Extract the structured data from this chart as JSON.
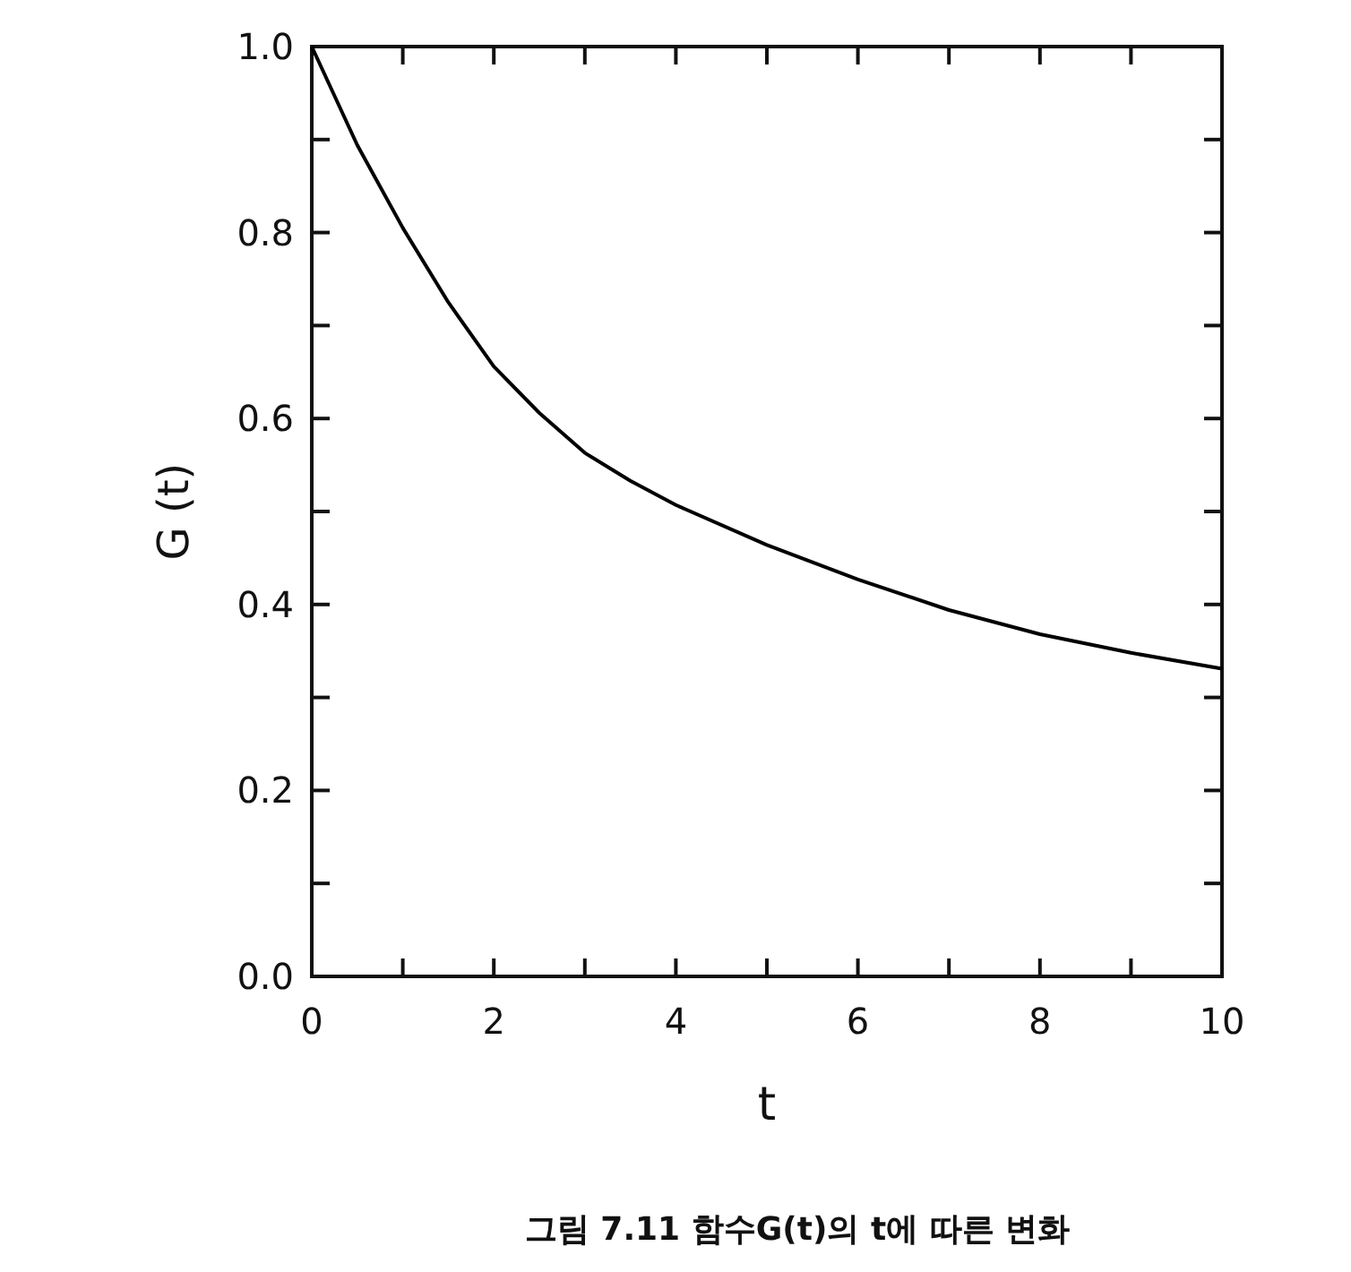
{
  "chart_data": {
    "type": "line",
    "xlabel": "t",
    "ylabel": "G (t)",
    "annotations": [
      "그림 7.11  함수G(t)의 t에 따른 변화"
    ],
    "x": [
      0,
      0.25,
      0.5,
      1,
      1.5,
      2,
      2.5,
      3,
      3.5,
      4,
      5,
      6,
      7,
      8,
      9,
      10
    ],
    "series": [
      {
        "color": "#000000",
        "values": [
          1.0,
          0.947,
          0.894,
          0.805,
          0.725,
          0.656,
          0.606,
          0.563,
          0.533,
          0.507,
          0.464,
          0.427,
          0.394,
          0.368,
          0.348,
          0.331
        ]
      }
    ],
    "xlim": [
      0,
      10
    ],
    "ylim": [
      0,
      1
    ],
    "xticks": [
      0,
      {
        "value": 1,
        "label": null
      },
      2,
      {
        "value": 3,
        "label": null
      },
      4,
      {
        "value": 5,
        "label": null
      },
      6,
      {
        "value": 7,
        "label": null
      },
      8,
      {
        "value": 9,
        "label": null
      },
      10
    ],
    "yticks": [
      {
        "value": 0,
        "label": "0.0"
      },
      {
        "value": 0.1,
        "label": null
      },
      {
        "value": 0.2,
        "label": "0.2"
      },
      {
        "value": 0.3,
        "label": null
      },
      {
        "value": 0.4,
        "label": "0.4"
      },
      {
        "value": 0.5,
        "label": null
      },
      {
        "value": 0.6,
        "label": "0.6"
      },
      {
        "value": 0.7,
        "label": null
      },
      {
        "value": 0.8,
        "label": "0.8"
      },
      {
        "value": 0.9,
        "label": null
      },
      {
        "value": 1,
        "label": "1.0"
      }
    ],
    "grid": false,
    "line_style": "solid"
  }
}
